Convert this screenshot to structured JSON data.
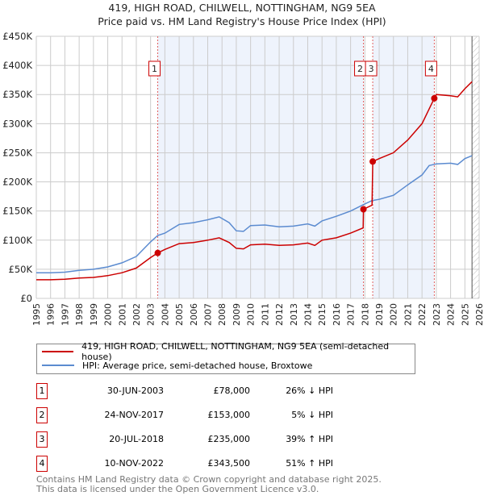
{
  "chart_data": {
    "type": "line",
    "title": "419, HIGH ROAD, CHILWELL, NOTTINGHAM, NG9 5EA",
    "subtitle": "Price paid vs. HM Land Registry's House Price Index (HPI)",
    "xlim": [
      1995,
      2026
    ],
    "ylim": [
      0,
      450000
    ],
    "x_ticks": [
      "1995",
      "1996",
      "1997",
      "1998",
      "1999",
      "2000",
      "2001",
      "2002",
      "2003",
      "2004",
      "2005",
      "2006",
      "2007",
      "2008",
      "2009",
      "2010",
      "2011",
      "2012",
      "2013",
      "2014",
      "2015",
      "2016",
      "2017",
      "2018",
      "2019",
      "2020",
      "2021",
      "2022",
      "2023",
      "2024",
      "2025",
      "2026"
    ],
    "y_ticks": [
      {
        "v": 0,
        "label": "£0"
      },
      {
        "v": 50000,
        "label": "£50K"
      },
      {
        "v": 100000,
        "label": "£100K"
      },
      {
        "v": 150000,
        "label": "£150K"
      },
      {
        "v": 200000,
        "label": "£200K"
      },
      {
        "v": 250000,
        "label": "£250K"
      },
      {
        "v": 300000,
        "label": "£300K"
      },
      {
        "v": 350000,
        "label": "£350K"
      },
      {
        "v": 400000,
        "label": "£400K"
      },
      {
        "v": 450000,
        "label": "£450K"
      }
    ],
    "series": [
      {
        "name": "419, HIGH ROAD, CHILWELL, NOTTINGHAM, NG9 5EA (semi-detached house)",
        "color": "#cc0000",
        "x": [
          1995,
          1996,
          1997,
          1998,
          1999,
          2000,
          2001,
          2002,
          2003,
          2003.5,
          2004,
          2005,
          2006,
          2007,
          2007.8,
          2008.5,
          2009,
          2009.5,
          2010,
          2011,
          2012,
          2013,
          2014,
          2014.5,
          2015,
          2016,
          2017,
          2017.88,
          2017.9,
          2018.5,
          2018.55,
          2019,
          2020,
          2021,
          2022,
          2022.86,
          2023,
          2024,
          2024.5,
          2025,
          2025.5
        ],
        "y": [
          32000,
          32000,
          33000,
          35000,
          36000,
          39000,
          44000,
          52000,
          70000,
          78000,
          84000,
          94000,
          96000,
          100000,
          104000,
          96000,
          86000,
          85000,
          92000,
          93000,
          91000,
          92000,
          95000,
          91000,
          100000,
          104000,
          112000,
          121000,
          153000,
          160000,
          235000,
          240000,
          250000,
          272000,
          300000,
          343500,
          350000,
          348000,
          346000,
          360000,
          372000
        ]
      },
      {
        "name": "HPI: Average price, semi-detached house, Broxtowe",
        "color": "#5b8bd0",
        "x": [
          1995,
          1996,
          1997,
          1998,
          1999,
          2000,
          2001,
          2002,
          2003,
          2003.5,
          2004,
          2005,
          2006,
          2007,
          2007.8,
          2008.5,
          2009,
          2009.5,
          2010,
          2011,
          2012,
          2013,
          2014,
          2014.5,
          2015,
          2016,
          2017,
          2017.9,
          2018.5,
          2019,
          2020,
          2021,
          2022,
          2022.5,
          2023,
          2024,
          2024.5,
          2025,
          2025.5
        ],
        "y": [
          44000,
          44000,
          45000,
          48000,
          50000,
          54000,
          61000,
          72000,
          97000,
          108000,
          112000,
          127000,
          130000,
          135000,
          140000,
          130000,
          116000,
          115000,
          125000,
          126000,
          123000,
          124000,
          128000,
          124000,
          133000,
          141000,
          150000,
          161000,
          168000,
          170000,
          177000,
          195000,
          212000,
          228000,
          231000,
          232000,
          230000,
          240000,
          245000
        ]
      }
    ],
    "sales": [
      {
        "id": "1",
        "x": 2003.5,
        "price": 78000,
        "date": "30-JUN-2003",
        "price_label": "£78,000",
        "hpi": "26% ↓ HPI"
      },
      {
        "id": "2",
        "x": 2017.9,
        "price": 153000,
        "date": "24-NOV-2017",
        "price_label": "£153,000",
        "hpi": "5% ↓ HPI"
      },
      {
        "id": "3",
        "x": 2018.55,
        "price": 235000,
        "date": "20-JUL-2018",
        "price_label": "£235,000",
        "hpi": "39% ↑ HPI"
      },
      {
        "id": "4",
        "x": 2022.86,
        "price": 343500,
        "date": "10-NOV-2022",
        "price_label": "£343,500",
        "hpi": "51% ↑ HPI"
      }
    ],
    "shaded": [
      [
        2003.5,
        2017.9
      ],
      [
        2018.55,
        2022.86
      ]
    ],
    "hatch_from": 2025.5,
    "legend_placement": "below"
  },
  "footer": {
    "line1": "Contains HM Land Registry data © Crown copyright and database right 2025.",
    "line2": "This data is licensed under the Open Government Licence v3.0."
  }
}
